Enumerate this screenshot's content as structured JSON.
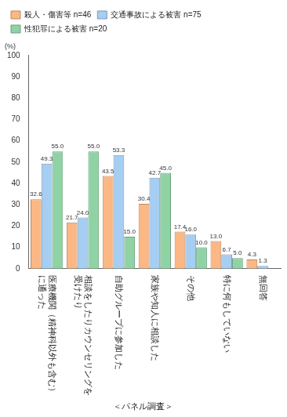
{
  "chart_data": {
    "type": "bar",
    "y_label": "(%)",
    "caption": "＜パネル調査＞",
    "categories": [
      "医療機関（精神科以外も含む）に通った",
      "相談をしたりカウンセリングを受けたり",
      "自助グループに参加した",
      "家族や知人に相談した",
      "その他",
      "特に何もしていない",
      "無回答"
    ],
    "series": [
      {
        "name": "殺人・傷害等 n=46",
        "color": "#fbb784",
        "values": [
          32.6,
          21.7,
          43.5,
          30.4,
          17.4,
          13.0,
          4.3
        ],
        "value_labels": [
          "32.6",
          "21.7",
          "43.5",
          "30.4",
          "17.4",
          "13.0",
          "4.3"
        ]
      },
      {
        "name": "交通事故による被害 n=75",
        "color": "#a6cdf2",
        "values": [
          49.3,
          24.0,
          53.3,
          42.7,
          16.0,
          6.7,
          1.3
        ],
        "value_labels": [
          "49.3",
          "24.0",
          "53.3",
          "42.7",
          "16.0",
          "6.7",
          "1.3"
        ]
      },
      {
        "name": "性犯罪による被害 n=20",
        "color": "#8fd3a5",
        "values": [
          55.0,
          55.0,
          15.0,
          45.0,
          10.0,
          5.0,
          null
        ],
        "value_labels": [
          "55.0",
          "55.0",
          "15.0",
          "45.0",
          "10.0",
          "5.0",
          null
        ]
      }
    ],
    "ylim": [
      0,
      100
    ],
    "yticks": [
      0,
      10,
      20,
      30,
      40,
      50,
      60,
      70,
      80,
      90,
      100
    ],
    "grid": false,
    "legend": "top",
    "data_labels": true
  }
}
